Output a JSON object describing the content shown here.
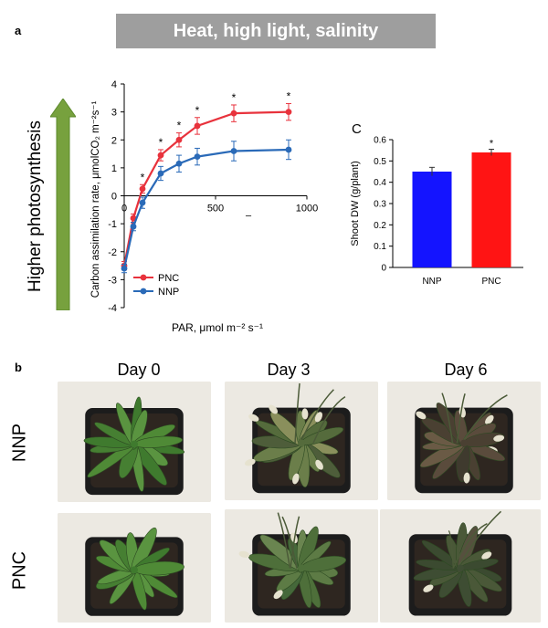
{
  "panel_a": {
    "letter": "a",
    "banner": "Heat, high light, salinity",
    "side_label": "Higher photosynthesis",
    "side_arrow_color": "#77a13e"
  },
  "panel_c": {
    "letter": "C"
  },
  "panel_b": {
    "letter": "b",
    "days": [
      "Day 0",
      "Day 3",
      "Day 6"
    ],
    "rows": [
      "NNP",
      "PNC"
    ]
  },
  "chart_data": [
    {
      "type": "line",
      "ylabel": "Carbon assimilation rate, μmolCO₂ m⁻²s⁻¹",
      "xlabel": "PAR, μmol m⁻² s⁻¹",
      "xlim": [
        0,
        1000
      ],
      "ylim": [
        -4,
        4
      ],
      "xticks": [
        0,
        500,
        1000
      ],
      "yticks": [
        -4,
        -3,
        -2,
        -1,
        0,
        1,
        2,
        3,
        4
      ],
      "legend_position": "lower-center",
      "series": [
        {
          "name": "PNC",
          "color": "#e8323c",
          "x": [
            0,
            50,
            100,
            200,
            300,
            400,
            600,
            900
          ],
          "y": [
            -2.5,
            -0.8,
            0.25,
            1.45,
            2.0,
            2.5,
            2.95,
            3.0
          ],
          "err": [
            0.15,
            0.15,
            0.15,
            0.2,
            0.25,
            0.3,
            0.3,
            0.3
          ]
        },
        {
          "name": "NNP",
          "color": "#2a6ab8",
          "x": [
            0,
            50,
            100,
            200,
            300,
            400,
            600,
            900
          ],
          "y": [
            -2.6,
            -1.1,
            -0.25,
            0.8,
            1.15,
            1.4,
            1.6,
            1.65
          ],
          "err": [
            0.15,
            0.15,
            0.2,
            0.25,
            0.3,
            0.3,
            0.35,
            0.35
          ]
        }
      ],
      "significance_x": [
        100,
        200,
        300,
        400,
        600,
        900
      ],
      "significance_mark": "*",
      "tick_mark_label": "–"
    },
    {
      "type": "bar",
      "ylabel": "Shoot DW (g/plant)",
      "categories": [
        "NNP",
        "PNC"
      ],
      "values": [
        0.45,
        0.54
      ],
      "err": [
        0.02,
        0.015
      ],
      "colors": [
        "#1414ff",
        "#ff1414"
      ],
      "ylim": [
        0,
        0.6
      ],
      "yticks": [
        0,
        0.1,
        0.2,
        0.3,
        0.4,
        0.5,
        0.6
      ],
      "annotation": {
        "category": "PNC",
        "text": "*"
      }
    }
  ]
}
